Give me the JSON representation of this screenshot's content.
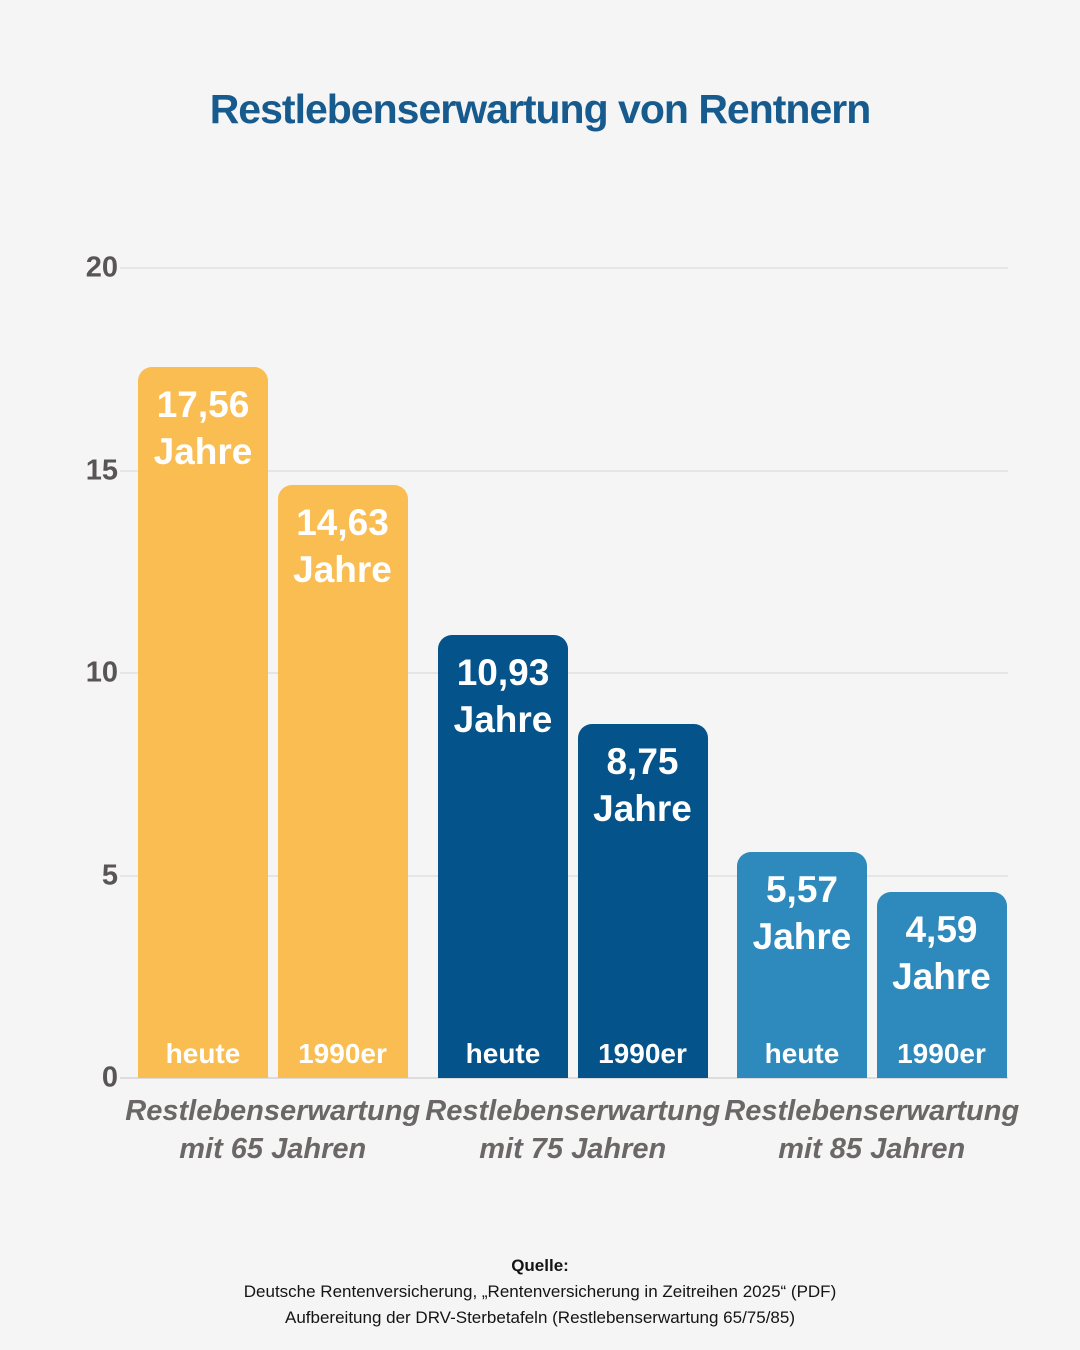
{
  "title": "Restlebenserwartung von Rentnern",
  "chart_data": {
    "type": "bar",
    "title": "Restlebenserwartung von Rentnern",
    "ylabel": "",
    "xlabel": "",
    "ylim": [
      0,
      20
    ],
    "yticks": [
      0,
      5,
      10,
      15,
      20
    ],
    "grid": true,
    "unit_word": "Jahre",
    "series_names": [
      "heute",
      "1990er"
    ],
    "groups": [
      {
        "label_lines": [
          "Restlebenserwartung",
          "mit 65 Jahren"
        ],
        "color": "#F9BD52",
        "bars": [
          {
            "series": "heute",
            "value": 17.56,
            "value_lines": [
              "17,56",
              "Jahre"
            ]
          },
          {
            "series": "1990er",
            "value": 14.63,
            "value_lines": [
              "14,63",
              "Jahre"
            ]
          }
        ]
      },
      {
        "label_lines": [
          "Restlebenserwartung",
          "mit 75 Jahren"
        ],
        "color": "#05538B",
        "bars": [
          {
            "series": "heute",
            "value": 10.93,
            "value_lines": [
              "10,93",
              "Jahre"
            ]
          },
          {
            "series": "1990er",
            "value": 8.75,
            "value_lines": [
              "8,75",
              "Jahre"
            ]
          }
        ]
      },
      {
        "label_lines": [
          "Restlebenserwartung",
          "mit 85 Jahren"
        ],
        "color": "#2E8ABC",
        "bars": [
          {
            "series": "heute",
            "value": 5.57,
            "value_lines": [
              "5,57",
              "Jahre"
            ]
          },
          {
            "series": "1990er",
            "value": 4.59,
            "value_lines": [
              "4,59",
              "Jahre"
            ]
          }
        ]
      }
    ]
  },
  "footer": {
    "source_label": "Quelle:",
    "lines": [
      "Deutsche Rentenversicherung, „Rentenversicherung in Zeitreihen 2025“ (PDF)",
      "Aufbereitung der DRV-Sterbetafeln (Restlebenserwartung 65/75/85)"
    ]
  },
  "colors": {
    "background": "#F4F5F4",
    "title": "#175A8E",
    "axis_label": "#595455",
    "group_label": "#6B6767",
    "gridline": "#E4E5E4",
    "bar_group_65": "#F9BD52",
    "bar_group_75": "#05538B",
    "bar_group_85": "#2E8ABC",
    "bar_text": "#FFFFFF"
  }
}
